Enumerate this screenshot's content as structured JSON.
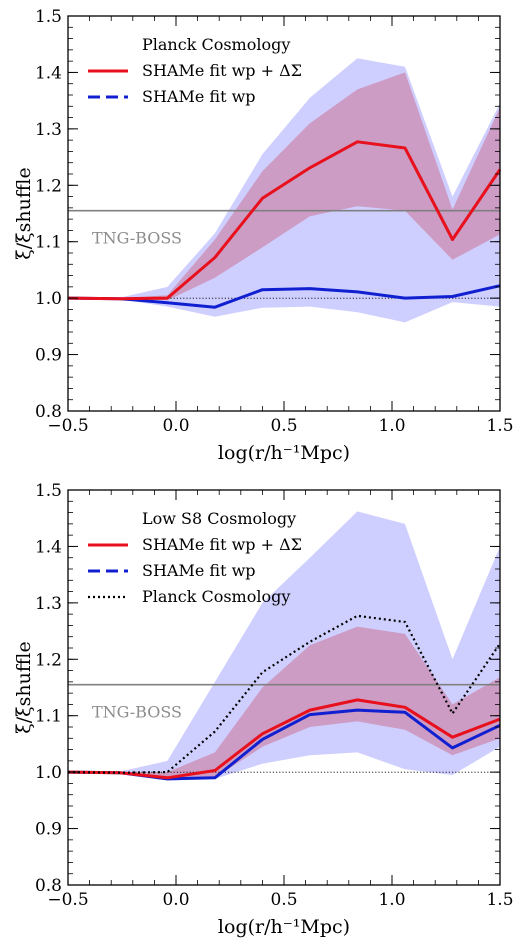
{
  "chart_data": [
    {
      "type": "line",
      "xlabel": "log(r/h⁻¹Mpc)",
      "ylabel": "ξ/ξshuffle",
      "xlim": [
        -0.5,
        1.5
      ],
      "ylim": [
        0.8,
        1.5
      ],
      "xticks": [
        "−0.5",
        "0.0",
        "0.5",
        "1.0",
        "1.5"
      ],
      "yticks": [
        "0.8",
        "0.9",
        "1.0",
        "1.1",
        "1.2",
        "1.3",
        "1.4",
        "1.5"
      ],
      "legend_title": "Planck Cosmology",
      "legend_position": "top-left",
      "reference_line": {
        "y": 1.155,
        "label": "TNG-BOSS",
        "color": "#808080"
      },
      "unity_line": {
        "y": 1.0,
        "style": "dotted"
      },
      "series": [
        {
          "name": "SHAMe fit wp + ΔΣ",
          "color": "#e8101c",
          "style": "solid",
          "x": [
            -0.5,
            -0.26,
            -0.04,
            0.18,
            0.4,
            0.62,
            0.84,
            1.06,
            1.28,
            1.5
          ],
          "y": [
            1.0,
            0.999,
            1.0,
            1.072,
            1.177,
            1.231,
            1.277,
            1.266,
            1.104,
            1.228
          ],
          "band_low": [
            1.0,
            0.999,
            0.996,
            1.036,
            1.09,
            1.145,
            1.163,
            1.155,
            1.068,
            1.113
          ],
          "band_high": [
            1.0,
            1.0,
            1.005,
            1.104,
            1.225,
            1.31,
            1.37,
            1.4,
            1.157,
            1.338
          ]
        },
        {
          "name": "SHAMe fit wp",
          "color": "#1020d0",
          "style": "dashed",
          "x": [
            -0.5,
            -0.26,
            -0.04,
            0.18,
            0.4,
            0.62,
            0.84,
            1.06,
            1.28,
            1.5
          ],
          "y": [
            1.0,
            0.999,
            0.992,
            0.984,
            1.015,
            1.017,
            1.011,
            1.0,
            1.003,
            1.022
          ],
          "band_low": [
            1.0,
            0.998,
            0.985,
            0.967,
            0.983,
            0.985,
            0.975,
            0.957,
            0.993,
            0.985
          ],
          "band_high": [
            1.0,
            1.001,
            1.02,
            1.115,
            1.255,
            1.355,
            1.425,
            1.41,
            1.18,
            1.345
          ]
        }
      ]
    },
    {
      "type": "line",
      "xlabel": "log(r/h⁻¹Mpc)",
      "ylabel": "ξ/ξshuffle",
      "xlim": [
        -0.5,
        1.5
      ],
      "ylim": [
        0.8,
        1.5
      ],
      "xticks": [
        "−0.5",
        "0.0",
        "0.5",
        "1.0",
        "1.5"
      ],
      "yticks": [
        "0.8",
        "0.9",
        "1.0",
        "1.1",
        "1.2",
        "1.3",
        "1.4",
        "1.5"
      ],
      "legend_title": "Low S8 Cosmology",
      "legend_position": "top-left",
      "reference_line": {
        "y": 1.155,
        "label": "TNG-BOSS",
        "color": "#808080"
      },
      "unity_line": {
        "y": 1.0,
        "style": "dotted"
      },
      "series": [
        {
          "name": "SHAMe fit wp + ΔΣ",
          "color": "#e8101c",
          "style": "solid",
          "x": [
            -0.5,
            -0.26,
            -0.04,
            0.18,
            0.4,
            0.62,
            0.84,
            1.06,
            1.28,
            1.5
          ],
          "y": [
            1.0,
            0.999,
            0.99,
            1.003,
            1.068,
            1.11,
            1.128,
            1.115,
            1.062,
            1.094
          ],
          "band_low": [
            1.0,
            0.999,
            0.99,
            0.99,
            1.045,
            1.08,
            1.09,
            1.075,
            1.03,
            1.06
          ],
          "band_high": [
            1.0,
            1.0,
            1.0,
            1.035,
            1.15,
            1.225,
            1.258,
            1.245,
            1.12,
            1.168
          ]
        },
        {
          "name": "SHAMe fit wp",
          "color": "#1020d0",
          "style": "dashed",
          "x": [
            -0.5,
            -0.26,
            -0.04,
            0.18,
            0.4,
            0.62,
            0.84,
            1.06,
            1.28,
            1.5
          ],
          "y": [
            1.0,
            0.999,
            0.988,
            0.99,
            1.058,
            1.102,
            1.11,
            1.106,
            1.043,
            1.083
          ],
          "band_low": [
            1.0,
            0.998,
            0.985,
            0.988,
            1.015,
            1.03,
            1.035,
            1.005,
            0.995,
            1.045
          ],
          "band_high": [
            1.0,
            1.001,
            1.02,
            1.16,
            1.3,
            1.38,
            1.462,
            1.44,
            1.2,
            1.4
          ]
        },
        {
          "name": "Planck Cosmology",
          "color": "#000000",
          "style": "dotted",
          "x": [
            -0.5,
            -0.26,
            -0.04,
            0.18,
            0.4,
            0.62,
            0.84,
            1.06,
            1.28,
            1.5
          ],
          "y": [
            1.0,
            0.999,
            1.0,
            1.072,
            1.177,
            1.231,
            1.277,
            1.266,
            1.104,
            1.228
          ]
        }
      ]
    }
  ]
}
